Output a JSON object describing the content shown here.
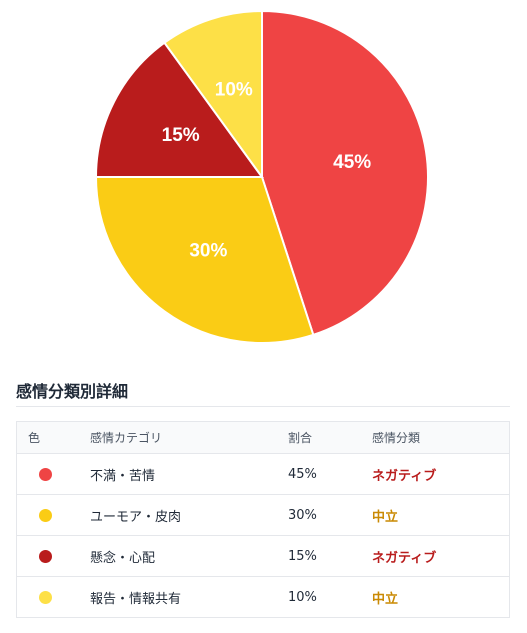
{
  "chart_data": {
    "type": "pie",
    "slices": [
      {
        "label": "不満・苦情",
        "value": 45,
        "color": "#ef4444",
        "value_label": "45%"
      },
      {
        "label": "ユーモア・皮肉",
        "value": 30,
        "color": "#facc15",
        "value_label": "30%"
      },
      {
        "label": "懸念・心配",
        "value": 15,
        "color": "#b91c1c",
        "value_label": "15%"
      },
      {
        "label": "報告・情報共有",
        "value": 10,
        "color": "#fde047",
        "value_label": "10%"
      }
    ],
    "start": "12 o'clock",
    "direction": "clockwise",
    "legend": "none"
  },
  "section": {
    "title": "感情分類別詳細"
  },
  "table": {
    "headers": {
      "color": "色",
      "category": "感情カテゴリ",
      "ratio": "割合",
      "classification": "感情分類"
    },
    "rows": [
      {
        "color": "#ef4444",
        "category": "不満・苦情",
        "ratio": "45%",
        "classification": "ネガティブ",
        "class_color": "#b91c1c"
      },
      {
        "color": "#facc15",
        "category": "ユーモア・皮肉",
        "ratio": "30%",
        "classification": "中立",
        "class_color": "#ca8a04"
      },
      {
        "color": "#b91c1c",
        "category": "懸念・心配",
        "ratio": "15%",
        "classification": "ネガティブ",
        "class_color": "#b91c1c"
      },
      {
        "color": "#fde047",
        "category": "報告・情報共有",
        "ratio": "10%",
        "classification": "中立",
        "class_color": "#ca8a04"
      }
    ]
  }
}
